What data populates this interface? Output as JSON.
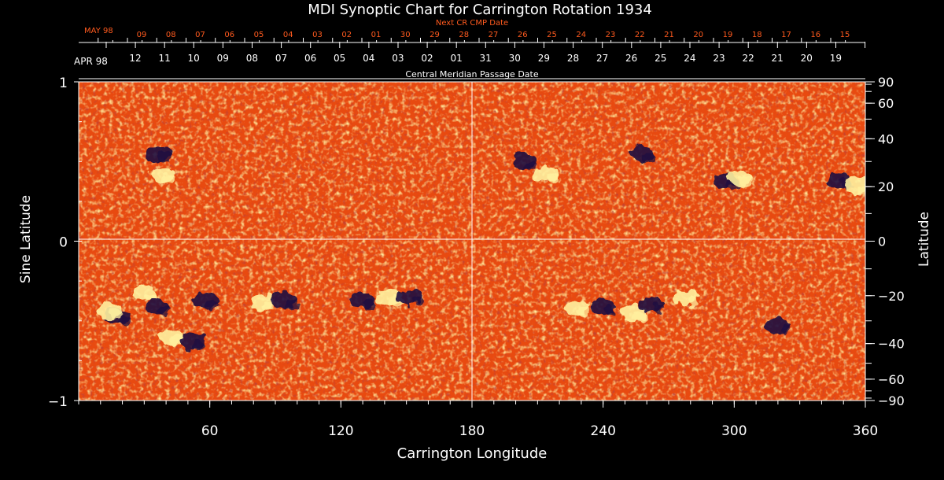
{
  "title": "MDI Synoptic Chart for Carrington Rotation 1934",
  "top_axis": {
    "next_label": "Next CR CMP Date",
    "next_start_label": "MAY 98",
    "next_dates": [
      "09",
      "08",
      "07",
      "06",
      "05",
      "04",
      "03",
      "02",
      "01",
      "30",
      "29",
      "28",
      "27",
      "26",
      "25",
      "24",
      "23",
      "22",
      "21",
      "20",
      "19",
      "18",
      "17",
      "16",
      "15"
    ],
    "current_start_label": "APR 98",
    "current_dates": [
      "12",
      "11",
      "10",
      "09",
      "08",
      "07",
      "06",
      "05",
      "04",
      "03",
      "02",
      "01",
      "31",
      "30",
      "29",
      "28",
      "27",
      "26",
      "25",
      "24",
      "23",
      "22",
      "21",
      "20",
      "19"
    ],
    "center_label": "Central Meridian Passage Date"
  },
  "left_axis": {
    "label": "Sine Latitude",
    "ticks": [
      {
        "value": 1,
        "label": "1"
      },
      {
        "value": 0,
        "label": "0"
      },
      {
        "value": -1,
        "label": "−1"
      }
    ]
  },
  "right_axis": {
    "label": "Latitude",
    "ticks": [
      90,
      60,
      40,
      20,
      0,
      -20,
      -40,
      -60,
      -90
    ],
    "tick_labels": [
      "90",
      "60",
      "40",
      "20",
      "0",
      "−20",
      "−40",
      "−60",
      "−90"
    ]
  },
  "bottom_axis": {
    "label": "Carrington Longitude",
    "ticks": [
      60,
      120,
      180,
      240,
      300,
      360
    ],
    "tick_labels": [
      "60",
      "120",
      "180",
      "240",
      "300",
      "360"
    ]
  },
  "colors": {
    "background": "#000000",
    "map_base": "#e84a10",
    "positive_polarity": "#fff2a0",
    "negative_polarity": "#1c0c40",
    "red_text": "#ff5a1e",
    "grid": "#ffffff"
  },
  "active_regions": [
    {
      "lon": 18,
      "sinlat": -0.47,
      "polarity": "negative"
    },
    {
      "lon": 14,
      "sinlat": -0.43,
      "polarity": "positive"
    },
    {
      "lon": 30,
      "sinlat": -0.33,
      "polarity": "positive"
    },
    {
      "lon": 36,
      "sinlat": -0.41,
      "polarity": "negative"
    },
    {
      "lon": 42,
      "sinlat": -0.6,
      "polarity": "positive"
    },
    {
      "lon": 52,
      "sinlat": -0.63,
      "polarity": "negative"
    },
    {
      "lon": 58,
      "sinlat": -0.37,
      "polarity": "negative"
    },
    {
      "lon": 84,
      "sinlat": -0.38,
      "polarity": "positive"
    },
    {
      "lon": 94,
      "sinlat": -0.37,
      "polarity": "negative"
    },
    {
      "lon": 130,
      "sinlat": -0.37,
      "polarity": "negative"
    },
    {
      "lon": 142,
      "sinlat": -0.35,
      "polarity": "positive"
    },
    {
      "lon": 152,
      "sinlat": -0.35,
      "polarity": "negative"
    },
    {
      "lon": 36,
      "sinlat": 0.55,
      "polarity": "negative"
    },
    {
      "lon": 38,
      "sinlat": 0.42,
      "polarity": "positive"
    },
    {
      "lon": 204,
      "sinlat": 0.5,
      "polarity": "negative"
    },
    {
      "lon": 214,
      "sinlat": 0.42,
      "polarity": "positive"
    },
    {
      "lon": 228,
      "sinlat": -0.42,
      "polarity": "positive"
    },
    {
      "lon": 240,
      "sinlat": -0.41,
      "polarity": "negative"
    },
    {
      "lon": 254,
      "sinlat": -0.45,
      "polarity": "positive"
    },
    {
      "lon": 262,
      "sinlat": -0.4,
      "polarity": "negative"
    },
    {
      "lon": 278,
      "sinlat": -0.35,
      "polarity": "positive"
    },
    {
      "lon": 258,
      "sinlat": 0.55,
      "polarity": "negative"
    },
    {
      "lon": 296,
      "sinlat": 0.38,
      "polarity": "negative"
    },
    {
      "lon": 302,
      "sinlat": 0.4,
      "polarity": "positive"
    },
    {
      "lon": 320,
      "sinlat": -0.53,
      "polarity": "negative"
    },
    {
      "lon": 348,
      "sinlat": 0.38,
      "polarity": "negative"
    },
    {
      "lon": 356,
      "sinlat": 0.35,
      "polarity": "positive"
    }
  ]
}
